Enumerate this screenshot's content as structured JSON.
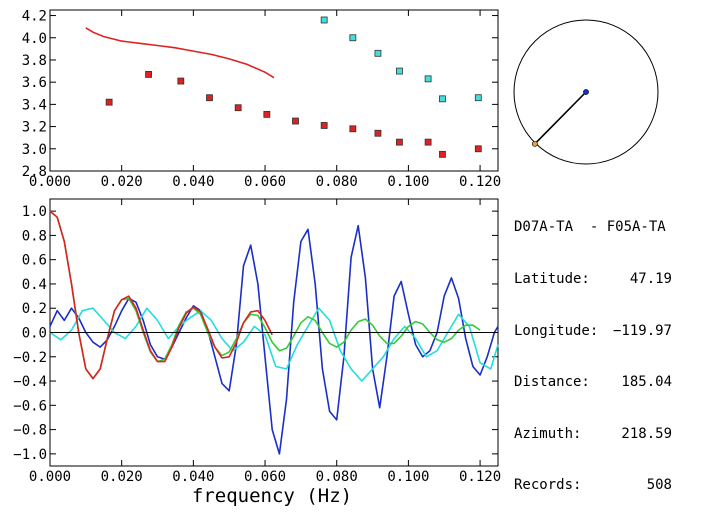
{
  "chart_data": [
    {
      "type": "scatter",
      "xlim": [
        0.0,
        0.125
      ],
      "ylim": [
        2.8,
        4.25
      ],
      "x_ticks": [
        0.0,
        0.02,
        0.04,
        0.06,
        0.08,
        0.1,
        0.12
      ],
      "x_tick_labels": [
        "0.000",
        "0.020",
        "0.040",
        "0.060",
        "0.080",
        "0.100",
        "0.120"
      ],
      "y_ticks": [
        2.8,
        3.0,
        3.2,
        3.4,
        3.6,
        3.8,
        4.0,
        4.2
      ],
      "y_tick_labels": [
        "2.8",
        "3.0",
        "3.2",
        "3.4",
        "3.6",
        "3.8",
        "4.0",
        "4.2"
      ],
      "series": [
        {
          "kind": "markers",
          "color": "#dd2222",
          "x": [
            0.0165,
            0.0275,
            0.0365,
            0.0445,
            0.0525,
            0.0605,
            0.0685,
            0.0765,
            0.0845,
            0.0915,
            0.0975,
            0.1055,
            0.1095,
            0.1195
          ],
          "y": [
            3.42,
            3.67,
            3.61,
            3.46,
            3.37,
            3.31,
            3.25,
            3.21,
            3.18,
            3.14,
            3.06,
            3.06,
            2.95,
            3.0
          ]
        },
        {
          "kind": "markers",
          "color": "#44dddd",
          "x": [
            0.0765,
            0.0845,
            0.0915,
            0.0975,
            0.1055,
            0.1095,
            0.1195
          ],
          "y": [
            4.16,
            4.0,
            3.86,
            3.7,
            3.63,
            3.45,
            3.46
          ]
        },
        {
          "kind": "line",
          "color": "#dd2222",
          "x": [
            0.01,
            0.012,
            0.015,
            0.02,
            0.025,
            0.03,
            0.035,
            0.04,
            0.045,
            0.05,
            0.055,
            0.06,
            0.0625
          ],
          "y": [
            4.09,
            4.05,
            4.01,
            3.97,
            3.95,
            3.93,
            3.91,
            3.88,
            3.85,
            3.81,
            3.76,
            3.69,
            3.64
          ]
        }
      ]
    },
    {
      "type": "line",
      "xlabel": "frequency (Hz)",
      "xlim": [
        0.0,
        0.125
      ],
      "ylim": [
        -1.1,
        1.1
      ],
      "x_ticks": [
        0.0,
        0.02,
        0.04,
        0.06,
        0.08,
        0.1,
        0.12
      ],
      "x_tick_labels": [
        "0.000",
        "0.020",
        "0.040",
        "0.060",
        "0.080",
        "0.100",
        "0.120"
      ],
      "y_ticks": [
        -1.0,
        -0.8,
        -0.6,
        -0.4,
        -0.2,
        0.0,
        0.2,
        0.4,
        0.6,
        0.8,
        1.0
      ],
      "y_tick_labels": [
        "−1.0",
        "−0.8",
        "−0.6",
        "−0.4",
        "−0.2",
        "0.0",
        "0.2",
        "0.4",
        "0.6",
        "0.8",
        "1.0"
      ],
      "series": [
        {
          "color": "#1a2fc7",
          "x": [
            0.0,
            0.002,
            0.004,
            0.006,
            0.008,
            0.01,
            0.012,
            0.014,
            0.016,
            0.018,
            0.02,
            0.022,
            0.024,
            0.026,
            0.028,
            0.03,
            0.032,
            0.034,
            0.036,
            0.038,
            0.04,
            0.042,
            0.044,
            0.046,
            0.048,
            0.05,
            0.052,
            0.054,
            0.056,
            0.058,
            0.06,
            0.062,
            0.064,
            0.066,
            0.068,
            0.07,
            0.072,
            0.074,
            0.076,
            0.078,
            0.08,
            0.082,
            0.084,
            0.086,
            0.088,
            0.09,
            0.092,
            0.094,
            0.096,
            0.098,
            0.1,
            0.102,
            0.104,
            0.106,
            0.108,
            0.11,
            0.112,
            0.114,
            0.116,
            0.118,
            0.12,
            0.122,
            0.124,
            0.125
          ],
          "y": [
            0.05,
            0.18,
            0.1,
            0.2,
            0.12,
            0.0,
            -0.08,
            -0.12,
            -0.06,
            0.05,
            0.18,
            0.28,
            0.25,
            0.1,
            -0.1,
            -0.2,
            -0.22,
            -0.12,
            0.0,
            0.12,
            0.22,
            0.18,
            0.02,
            -0.2,
            -0.42,
            -0.48,
            -0.1,
            0.55,
            0.72,
            0.4,
            -0.2,
            -0.8,
            -1.0,
            -0.55,
            0.25,
            0.75,
            0.85,
            0.4,
            -0.3,
            -0.65,
            -0.72,
            -0.2,
            0.62,
            0.88,
            0.45,
            -0.3,
            -0.62,
            -0.2,
            0.3,
            0.42,
            0.15,
            -0.1,
            -0.2,
            -0.15,
            0.0,
            0.3,
            0.45,
            0.28,
            -0.05,
            -0.28,
            -0.35,
            -0.2,
            0.0,
            0.05
          ]
        },
        {
          "color": "#22dddd",
          "x": [
            0.0,
            0.003,
            0.006,
            0.009,
            0.012,
            0.015,
            0.018,
            0.021,
            0.024,
            0.027,
            0.03,
            0.033,
            0.036,
            0.039,
            0.042,
            0.045,
            0.048,
            0.051,
            0.054,
            0.057,
            0.06,
            0.063,
            0.066,
            0.069,
            0.072,
            0.075,
            0.078,
            0.081,
            0.084,
            0.087,
            0.09,
            0.093,
            0.096,
            0.099,
            0.102,
            0.105,
            0.108,
            0.111,
            0.114,
            0.117,
            0.12,
            0.123,
            0.125
          ],
          "y": [
            0.0,
            -0.06,
            0.02,
            0.18,
            0.2,
            0.1,
            0.0,
            -0.05,
            0.05,
            0.2,
            0.1,
            -0.05,
            0.05,
            0.12,
            0.18,
            0.1,
            -0.05,
            -0.15,
            -0.08,
            0.05,
            -0.02,
            -0.28,
            -0.3,
            -0.1,
            0.05,
            0.2,
            0.1,
            -0.15,
            -0.3,
            -0.4,
            -0.3,
            -0.2,
            -0.05,
            0.05,
            -0.05,
            -0.2,
            -0.15,
            0.0,
            0.15,
            0.05,
            -0.25,
            -0.3,
            -0.1
          ]
        },
        {
          "color": "#33cc33",
          "x": [
            0.0,
            0.002,
            0.004,
            0.006,
            0.008,
            0.01,
            0.012,
            0.014,
            0.016,
            0.018,
            0.02,
            0.022,
            0.024,
            0.026,
            0.028,
            0.03,
            0.032,
            0.034,
            0.036,
            0.038,
            0.04,
            0.042,
            0.044,
            0.046,
            0.048,
            0.05,
            0.052,
            0.054,
            0.056,
            0.058,
            0.06,
            0.062,
            0.064,
            0.066,
            0.068,
            0.07,
            0.072,
            0.074,
            0.076,
            0.078,
            0.08,
            0.082,
            0.084,
            0.086,
            0.088,
            0.09,
            0.092,
            0.094,
            0.096,
            0.098,
            0.1,
            0.102,
            0.104,
            0.106,
            0.108,
            0.11,
            0.112,
            0.114,
            0.116,
            0.118,
            0.12
          ],
          "y": [
            1.0,
            0.95,
            0.75,
            0.4,
            0.0,
            -0.3,
            -0.38,
            -0.3,
            -0.05,
            0.18,
            0.27,
            0.28,
            0.18,
            0.0,
            -0.16,
            -0.24,
            -0.22,
            -0.1,
            0.06,
            0.17,
            0.2,
            0.15,
            0.0,
            -0.12,
            -0.19,
            -0.16,
            -0.05,
            0.08,
            0.15,
            0.14,
            0.04,
            -0.08,
            -0.15,
            -0.13,
            -0.03,
            0.08,
            0.13,
            0.1,
            0.0,
            -0.09,
            -0.12,
            -0.08,
            0.02,
            0.09,
            0.11,
            0.06,
            -0.03,
            -0.09,
            -0.09,
            -0.03,
            0.05,
            0.09,
            0.07,
            0.0,
            -0.06,
            -0.08,
            -0.05,
            0.02,
            0.06,
            0.06,
            0.02
          ]
        },
        {
          "color": "#dd2222",
          "x": [
            0.0,
            0.002,
            0.004,
            0.006,
            0.008,
            0.01,
            0.012,
            0.014,
            0.016,
            0.018,
            0.02,
            0.022,
            0.024,
            0.026,
            0.028,
            0.03,
            0.032,
            0.034,
            0.036,
            0.038,
            0.04,
            0.042,
            0.044,
            0.046,
            0.048,
            0.05,
            0.052,
            0.054,
            0.056,
            0.058,
            0.06,
            0.062
          ],
          "y": [
            1.0,
            0.95,
            0.75,
            0.4,
            0.0,
            -0.3,
            -0.38,
            -0.3,
            -0.05,
            0.18,
            0.27,
            0.3,
            0.2,
            0.02,
            -0.15,
            -0.24,
            -0.24,
            -0.12,
            0.04,
            0.16,
            0.21,
            0.17,
            0.03,
            -0.12,
            -0.21,
            -0.2,
            -0.08,
            0.08,
            0.17,
            0.18,
            0.1,
            -0.02
          ]
        },
        {
          "color": "#000000",
          "x": [
            0.0,
            0.125
          ],
          "y": [
            0.0,
            0.0
          ]
        }
      ]
    },
    {
      "type": "scatter",
      "title": "",
      "series": [
        {
          "kind": "path",
          "color": "#000000",
          "points": [
            [
              -0.71,
              -0.72
            ],
            [
              0.0,
              0.0
            ]
          ]
        },
        {
          "kind": "marker",
          "color": "#1a2fc7",
          "point": [
            0.0,
            0.0
          ]
        },
        {
          "kind": "marker",
          "color": "#e8a040",
          "point": [
            -0.71,
            -0.72
          ]
        }
      ]
    }
  ],
  "info": {
    "station_pair": "D07A-TA  - F05A-TA",
    "rows": [
      {
        "label": "Latitude:",
        "value": "47.19"
      },
      {
        "label": "Longitude:",
        "value": "−119.97"
      },
      {
        "label": "Distance:",
        "value": "185.04"
      },
      {
        "label": "Azimuth:",
        "value": "218.59"
      },
      {
        "label": "Records:",
        "value": "508"
      }
    ]
  }
}
